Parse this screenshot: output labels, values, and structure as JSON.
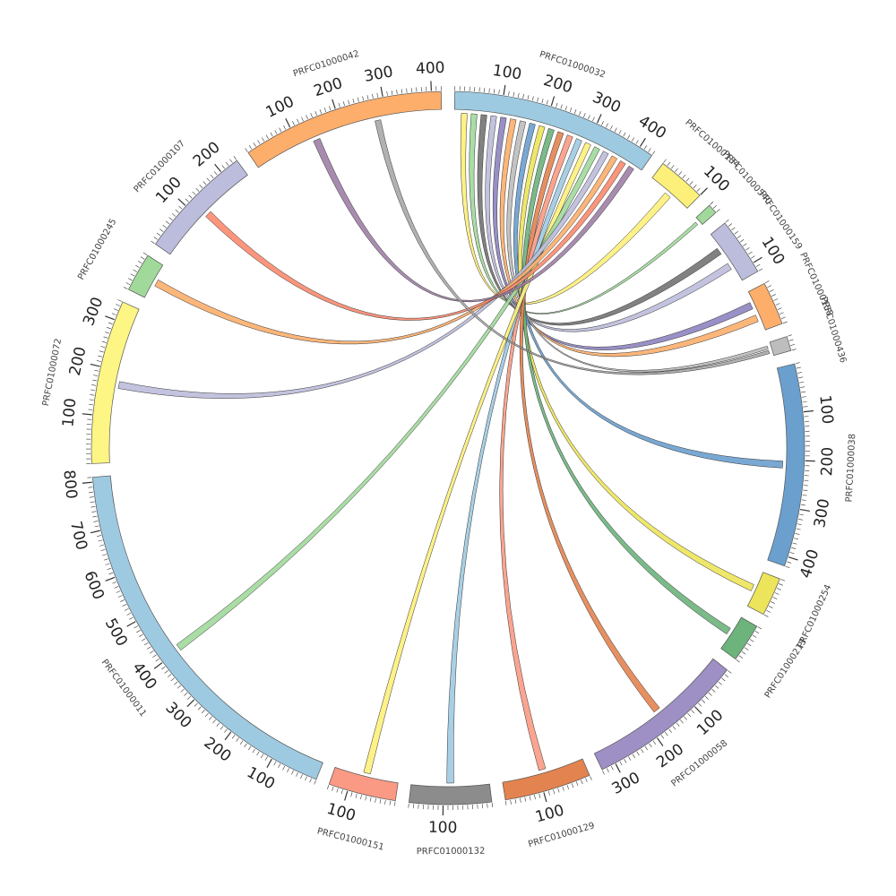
{
  "chart_data": {
    "type": "chord",
    "tick_unit": 100,
    "segments": [
      {
        "name": "PRFC01000032",
        "length": 430,
        "color": "#9ecae1",
        "show_label": true
      },
      {
        "name": "PRFC01000134",
        "length": 100,
        "color": "#fdf07a",
        "show_label": true
      },
      {
        "name": "PRFC01000540",
        "length": 20,
        "color": "#a1d99b",
        "show_label": true
      },
      {
        "name": "PRFC01000159",
        "length": 120,
        "color": "#bcbddc",
        "show_label": true
      },
      {
        "name": "PRFC01000158",
        "length": 90,
        "color": "#fdae6b",
        "show_label": true
      },
      {
        "name": "PRFC01000436",
        "length": 30,
        "color": "#bdbdbd",
        "show_label": true
      },
      {
        "name": "PRFC01000038",
        "length": 420,
        "color": "#6a9fce",
        "show_label": true
      },
      {
        "name": "PRFC01000254",
        "length": 80,
        "color": "#ece45a",
        "show_label": true
      },
      {
        "name": "PRFC01000213",
        "length": 80,
        "color": "#6db37c",
        "show_label": true
      },
      {
        "name": "PRFC01000058",
        "length": 330,
        "color": "#9e8fc4",
        "show_label": true
      },
      {
        "name": "PRFC01000129",
        "length": 180,
        "color": "#e3834f",
        "show_label": true
      },
      {
        "name": "PRFC01000132",
        "length": 170,
        "color": "#8c8c8c",
        "show_label": true
      },
      {
        "name": "PRFC01000151",
        "length": 140,
        "color": "#fb9a84",
        "show_label": true
      },
      {
        "name": "PRFC01000011",
        "length": 810,
        "color": "#9ecae1",
        "show_label": true
      },
      {
        "name": "PRFC01000072",
        "length": 340,
        "color": "#fdf584",
        "show_label": true
      },
      {
        "name": "PRFC01000245",
        "length": 80,
        "color": "#a1d99b",
        "show_label": true
      },
      {
        "name": "PRFC01000107",
        "length": 240,
        "color": "#bcbddc",
        "show_label": true
      },
      {
        "name": "PRFC01000042",
        "length": 420,
        "color": "#fdae6b",
        "show_label": true
      }
    ],
    "links": [
      {
        "source": "PRFC01000032",
        "target": "PRFC01000134",
        "color": "#fdf07a"
      },
      {
        "source": "PRFC01000032",
        "target": "PRFC01000540",
        "color": "#a1d99b"
      },
      {
        "source": "PRFC01000032",
        "target": "PRFC01000159",
        "color": "#737373"
      },
      {
        "source": "PRFC01000032",
        "target": "PRFC01000159",
        "color": "#bcbddc"
      },
      {
        "source": "PRFC01000032",
        "target": "PRFC01000158",
        "color": "#8d84c0"
      },
      {
        "source": "PRFC01000032",
        "target": "PRFC01000158",
        "color": "#fdae6b"
      },
      {
        "source": "PRFC01000032",
        "target": "PRFC01000436",
        "color": "#bdbdbd"
      },
      {
        "source": "PRFC01000032",
        "target": "PRFC01000038",
        "color": "#6a9fce"
      },
      {
        "source": "PRFC01000032",
        "target": "PRFC01000254",
        "color": "#ece45a"
      },
      {
        "source": "PRFC01000032",
        "target": "PRFC01000213",
        "color": "#6db37c"
      },
      {
        "source": "PRFC01000032",
        "target": "PRFC01000058",
        "color": "#e3834f"
      },
      {
        "source": "PRFC01000032",
        "target": "PRFC01000129",
        "color": "#fb9a84"
      },
      {
        "source": "PRFC01000032",
        "target": "PRFC01000132",
        "color": "#9ecae1"
      },
      {
        "source": "PRFC01000032",
        "target": "PRFC01000151",
        "color": "#fdf07a"
      },
      {
        "source": "PRFC01000032",
        "target": "PRFC01000011",
        "color": "#a1d99b"
      },
      {
        "source": "PRFC01000032",
        "target": "PRFC01000072",
        "color": "#bcbddc"
      },
      {
        "source": "PRFC01000032",
        "target": "PRFC01000245",
        "color": "#fdae6b"
      },
      {
        "source": "PRFC01000032",
        "target": "PRFC01000107",
        "color": "#fb8a6e"
      },
      {
        "source": "PRFC01000032",
        "target": "PRFC01000042",
        "color": "#9e7fa6"
      },
      {
        "source": "PRFC01000042",
        "target": "PRFC01000436",
        "color": "#a8a8a8"
      }
    ]
  }
}
